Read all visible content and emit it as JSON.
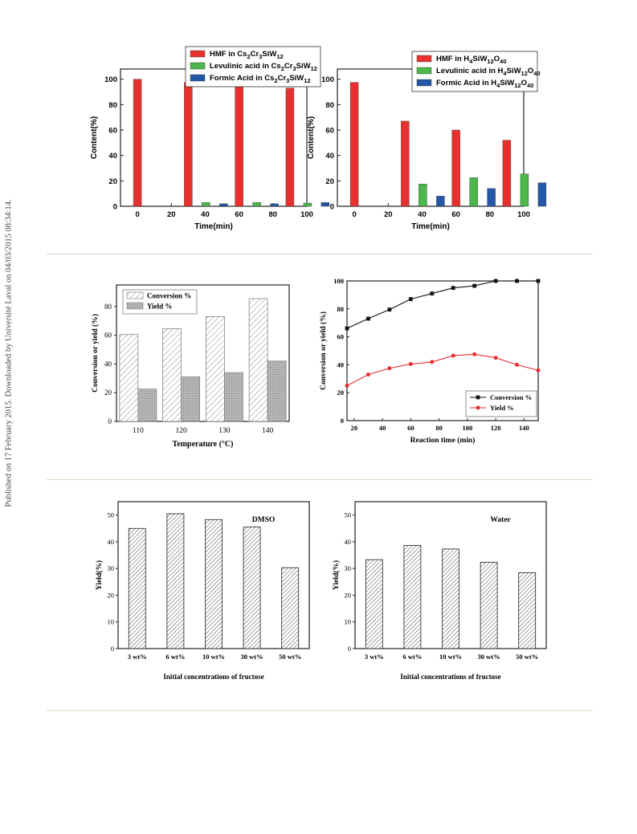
{
  "sidebar_note": "Published on 17 February 2015. Downloaded by Université Laval on 04/03/2015 08:34:14.",
  "chart_data": [
    {
      "type": "bar",
      "xlabel": "Time(min)",
      "ylabel": "Content(%)",
      "xlim": [
        -10,
        100
      ],
      "ylim": [
        0,
        108
      ],
      "xticks": [
        0,
        20,
        40,
        60,
        80,
        100
      ],
      "yticks": [
        0,
        20,
        40,
        60,
        80,
        100
      ],
      "x": [
        0,
        30,
        60,
        90
      ],
      "legend": {
        "position": "top",
        "entries": [
          {
            "pre": "HMF in Cs",
            "sub1": "2",
            "mid1": "Cr",
            "sub2": "3",
            "mid2": "SiW",
            "sub3": "12"
          },
          {
            "pre": "Levulinic acid in Cs",
            "sub1": "2",
            "mid1": "Cr",
            "sub2": "3",
            "mid2": "SiW",
            "sub3": "12"
          },
          {
            "pre": "Formic Acid in Cs",
            "sub1": "2",
            "mid1": "Cr",
            "sub2": "3",
            "mid2": "SiW",
            "sub3": "12"
          }
        ]
      },
      "series": [
        {
          "color": "#e8312f",
          "values": [
            100,
            97.5,
            94,
            93
          ]
        },
        {
          "color": "#4cb74a",
          "values": [
            0,
            3,
            3,
            2.5
          ]
        },
        {
          "color": "#2557a7",
          "values": [
            0,
            2,
            2,
            3
          ]
        }
      ]
    },
    {
      "type": "bar",
      "xlabel": "Time(min)",
      "ylabel": "Content(%)",
      "xlim": [
        -10,
        100
      ],
      "ylim": [
        0,
        108
      ],
      "xticks": [
        0,
        20,
        40,
        60,
        80,
        100
      ],
      "yticks": [
        0,
        20,
        40,
        60,
        80,
        100
      ],
      "x": [
        0,
        30,
        60,
        90
      ],
      "legend": {
        "position": "top-right",
        "entries": [
          {
            "pre": "HMF in H",
            "sub1": "4",
            "mid1": "SiW",
            "sub2": "12",
            "mid2": "O",
            "sub3": "40"
          },
          {
            "pre": "Levulinic acid in H",
            "sub1": "4",
            "mid1": "SiW",
            "sub2": "12",
            "mid2": "O",
            "sub3": "40"
          },
          {
            "pre": "Formic Acid in H",
            "sub1": "4",
            "mid1": "SiW",
            "sub2": "12",
            "mid2": "O",
            "sub3": "40"
          }
        ]
      },
      "series": [
        {
          "color": "#e8312f",
          "values": [
            97.5,
            67,
            60,
            52
          ]
        },
        {
          "color": "#4cb74a",
          "values": [
            0,
            17.5,
            22.5,
            25.5
          ]
        },
        {
          "color": "#2557a7",
          "values": [
            0,
            8,
            14,
            18.5
          ]
        }
      ]
    },
    {
      "type": "bar",
      "xlabel": "Temperature (°C)",
      "ylabel": "Conversion or yield (%)",
      "ylim": [
        0,
        95
      ],
      "yticks": [
        0,
        20,
        40,
        60,
        80
      ],
      "categories": [
        "110",
        "120",
        "130",
        "140"
      ],
      "legend": {
        "position": "top-left"
      },
      "series": [
        {
          "name": "Conversion %",
          "style": "hatch",
          "values": [
            60.5,
            64.5,
            73,
            85.5
          ]
        },
        {
          "name": "Yield %",
          "style": "dots",
          "values": [
            22.5,
            31,
            34,
            42
          ]
        }
      ]
    },
    {
      "type": "line",
      "xlabel": "Reaction time (min)",
      "ylabel": "Conversion or yield (%)",
      "xlim": [
        15,
        150
      ],
      "ylim": [
        0,
        100
      ],
      "xticks": [
        20,
        40,
        60,
        80,
        100,
        120,
        140
      ],
      "yticks": [
        0,
        20,
        40,
        60,
        80,
        100
      ],
      "legend": {
        "position": "bottom-right"
      },
      "series": [
        {
          "name": "Conversion %",
          "color": "#111111",
          "marker": "square",
          "x": [
            15,
            30,
            45,
            60,
            75,
            90,
            105,
            120,
            135,
            150
          ],
          "y": [
            66,
            73,
            79.5,
            87,
            91,
            95,
            96.5,
            100,
            100,
            100
          ]
        },
        {
          "name": "Yield %",
          "color": "#e53030",
          "marker": "circle",
          "x": [
            15,
            30,
            45,
            60,
            75,
            90,
            105,
            120,
            135,
            150
          ],
          "y": [
            25,
            33,
            37.5,
            40.5,
            42,
            46.5,
            47.5,
            45,
            40,
            36
          ]
        }
      ]
    },
    {
      "type": "bar",
      "annotation": "DMSO",
      "xlabel": "Initial concentrations of fructose",
      "ylabel": "Yield(%)",
      "ylim": [
        0,
        55
      ],
      "yticks": [
        0,
        10,
        20,
        30,
        40,
        50
      ],
      "categories": [
        "3 wt%",
        "6 wt%",
        "10 wt%",
        "30 wt%",
        "50 wt%"
      ],
      "values": [
        45,
        50.5,
        48.3,
        45.5,
        30.3
      ]
    },
    {
      "type": "bar",
      "annotation": "Water",
      "xlabel": "Initial concentrations of fructose",
      "ylabel": "Yield(%)",
      "ylim": [
        0,
        55
      ],
      "yticks": [
        0,
        10,
        20,
        30,
        40,
        50
      ],
      "categories": [
        "3 wt%",
        "6 wt%",
        "10 wt%",
        "30 wt%",
        "50 wt%"
      ],
      "values": [
        33.3,
        38.6,
        37.3,
        32.3,
        28.4
      ]
    }
  ]
}
